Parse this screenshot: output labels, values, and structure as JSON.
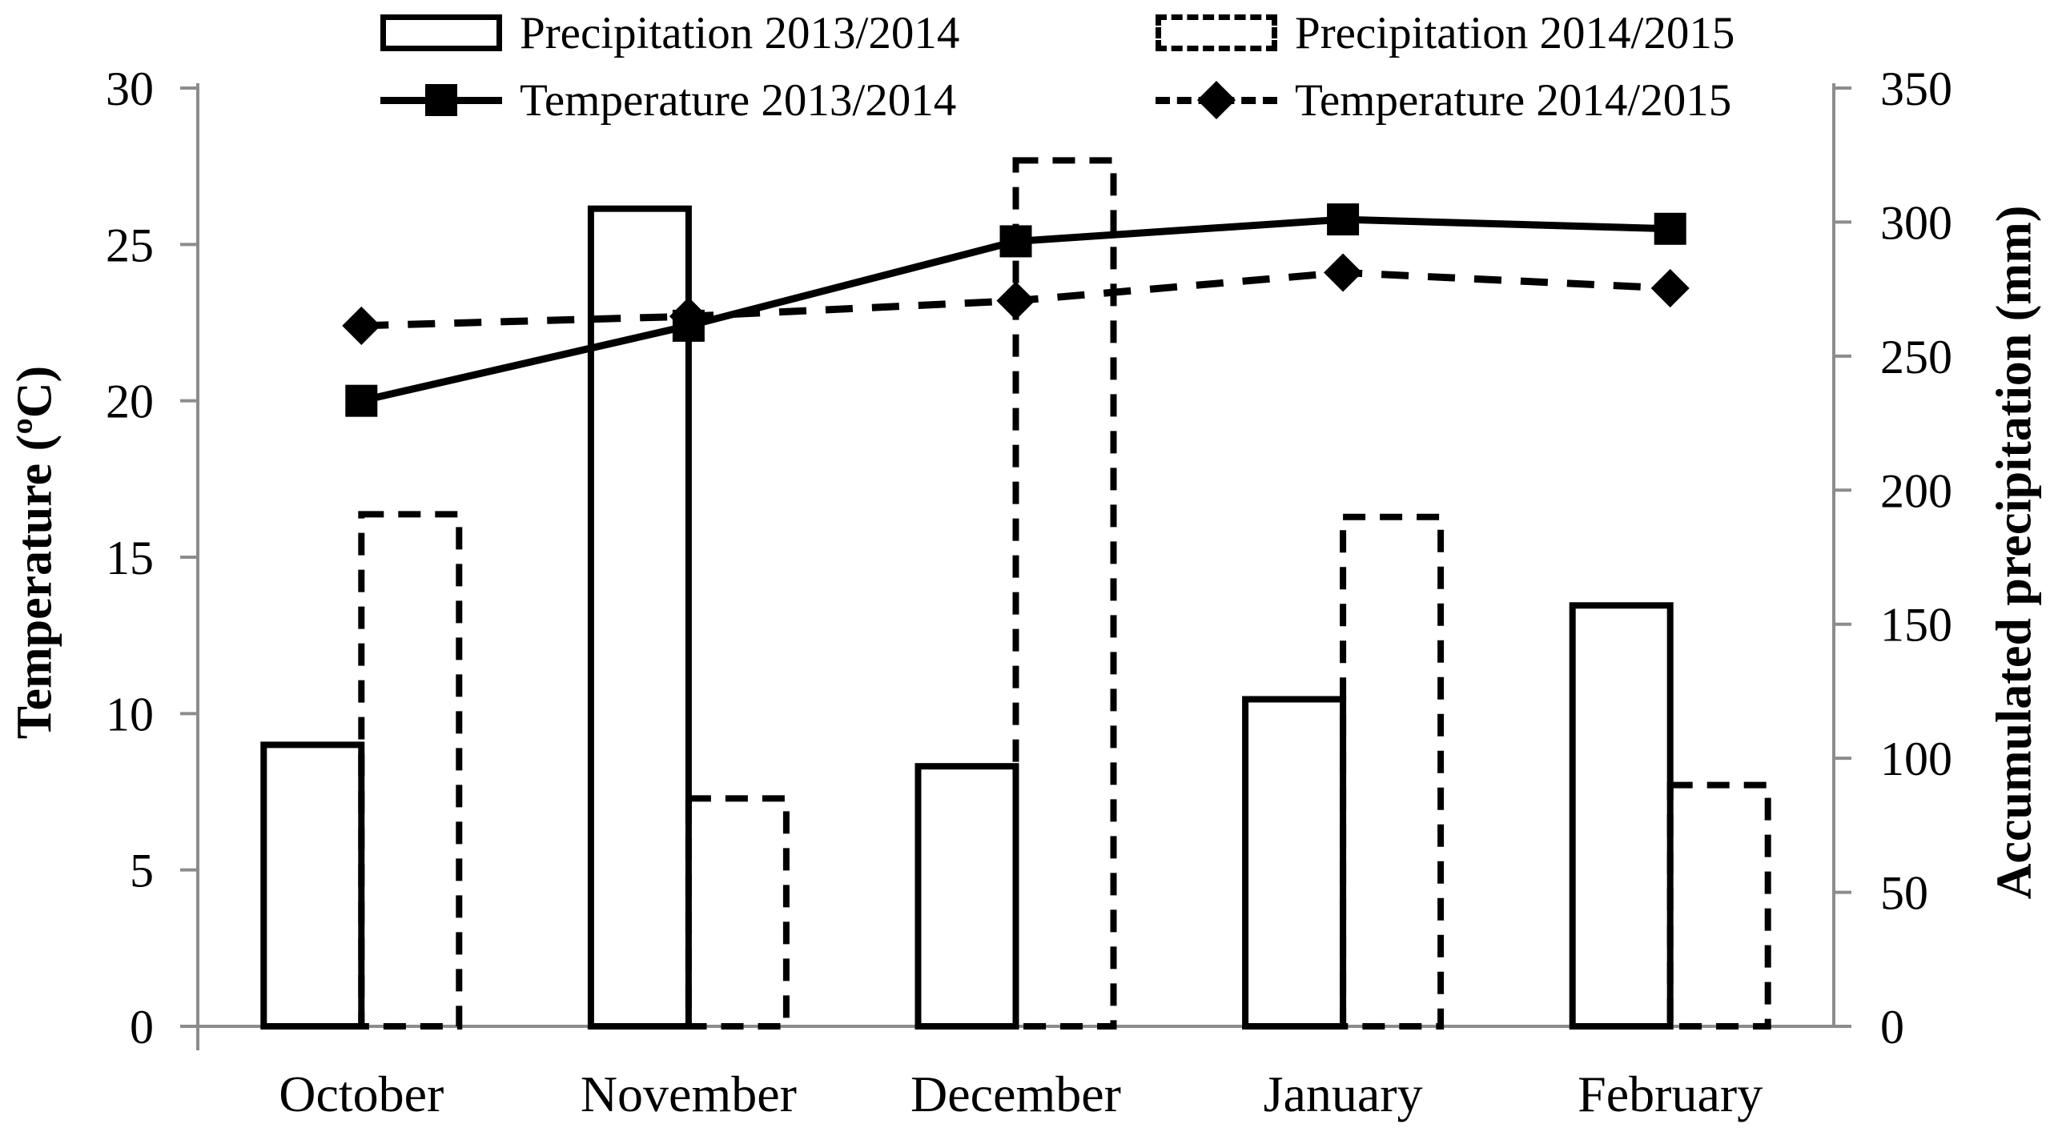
{
  "chart_data": {
    "type": "combo-bar-line",
    "title": "",
    "categories": [
      "October",
      "November",
      "December",
      "January",
      "February"
    ],
    "left_axis": {
      "label": "Temperature (ºC)",
      "min": 0,
      "max": 30,
      "tick_step": 5,
      "ticks": [
        0,
        5,
        10,
        15,
        20,
        25,
        30
      ]
    },
    "right_axis": {
      "label": "Accumulated precipitation (mm)",
      "min": 0,
      "max": 350,
      "tick_step": 50,
      "ticks": [
        0,
        50,
        100,
        150,
        200,
        250,
        300,
        350
      ]
    },
    "bar_series": [
      {
        "name": "Precipitation 2013/2014",
        "axis": "right",
        "style": "solid-outline",
        "values_mm": [
          105,
          305,
          97,
          122,
          157
        ]
      },
      {
        "name": "Precipitation 2014/2015",
        "axis": "right",
        "style": "dashed-outline",
        "values_mm": [
          191,
          85,
          323,
          190,
          90
        ]
      }
    ],
    "line_series": [
      {
        "name": "Temperature 2013/2014",
        "axis": "left",
        "style": "solid",
        "marker": "square",
        "values_c": [
          20.0,
          22.4,
          25.1,
          25.8,
          25.5
        ]
      },
      {
        "name": "Temperature 2014/2015",
        "axis": "left",
        "style": "dashed",
        "marker": "diamond",
        "values_c": [
          22.4,
          22.7,
          23.2,
          24.1,
          23.6
        ]
      }
    ],
    "legend_position": "top",
    "grid": "off",
    "colors": {
      "foreground": "#000000",
      "axis_line": "#8c8c8c",
      "background": "#ffffff"
    }
  }
}
